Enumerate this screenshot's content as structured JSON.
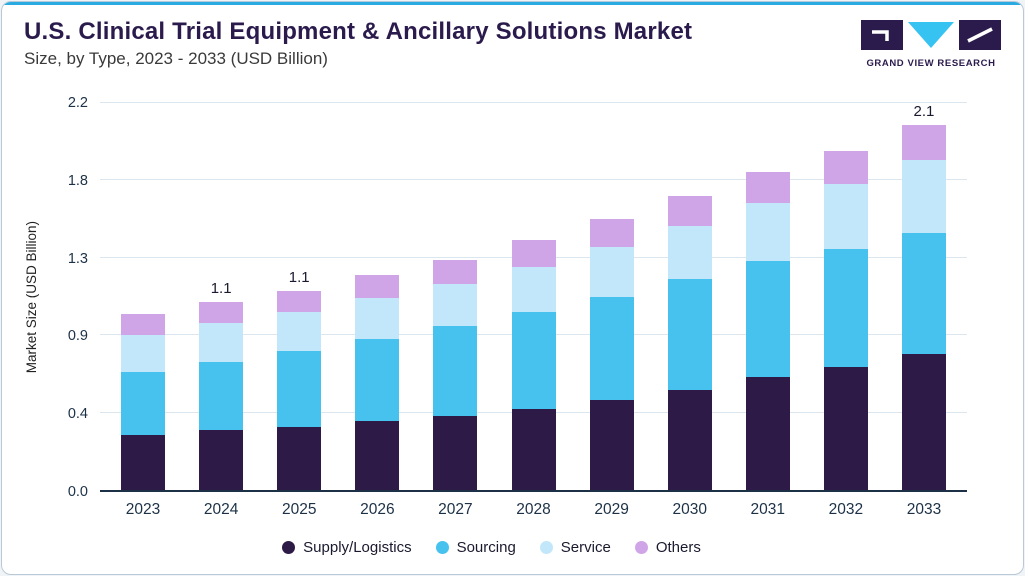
{
  "colors": {
    "brand-purple": "#2b1b4d",
    "accent-blue": "#29aae1",
    "axis-dark": "#1c3146",
    "grid-line": "#dbe6ef",
    "card-border": "#b9c9d8",
    "text-dark": "#1a1a2e",
    "subtitle-gray": "#3a3a3a"
  },
  "header": {
    "title": "U.S. Clinical Trial Equipment & Ancillary Solutions Market",
    "subtitle": "Size, by Type, 2023 - 2033 (USD Billion)",
    "logo_text": "GRAND VIEW RESEARCH"
  },
  "chart_data": {
    "type": "bar",
    "stacked": true,
    "title": "U.S. Clinical Trial Equipment & Ancillary Solutions Market Size, by Type, 2023 - 2033 (USD Billion)",
    "ylabel": "Market Size (USD Billion)",
    "xlabel": "",
    "ylim": [
      0,
      2.2
    ],
    "y_ticks": [
      "0.0",
      "0.4",
      "0.9",
      "1.3",
      "1.8",
      "2.2"
    ],
    "grid": true,
    "legend_position": "bottom",
    "categories": [
      "2023",
      "2024",
      "2025",
      "2026",
      "2027",
      "2028",
      "2029",
      "2030",
      "2031",
      "2032",
      "2033"
    ],
    "series": [
      {
        "name": "Supply/Logistics",
        "color": "#2e1a47",
        "values": [
          0.31,
          0.34,
          0.36,
          0.39,
          0.42,
          0.46,
          0.51,
          0.57,
          0.64,
          0.7,
          0.78
        ]
      },
      {
        "name": "Sourcing",
        "color": "#47c2ee",
        "values": [
          0.36,
          0.39,
          0.43,
          0.47,
          0.51,
          0.55,
          0.59,
          0.63,
          0.66,
          0.67,
          0.7
        ]
      },
      {
        "name": "Service",
        "color": "#c3e7fa",
        "values": [
          0.21,
          0.22,
          0.22,
          0.23,
          0.24,
          0.26,
          0.28,
          0.3,
          0.33,
          0.37,
          0.42
        ]
      },
      {
        "name": "Others",
        "color": "#d0a5e8",
        "values": [
          0.12,
          0.12,
          0.12,
          0.13,
          0.14,
          0.15,
          0.16,
          0.17,
          0.18,
          0.19,
          0.2
        ]
      }
    ],
    "bar_labels": {
      "2024": "1.1",
      "2025": "1.1",
      "2033": "2.1"
    }
  }
}
